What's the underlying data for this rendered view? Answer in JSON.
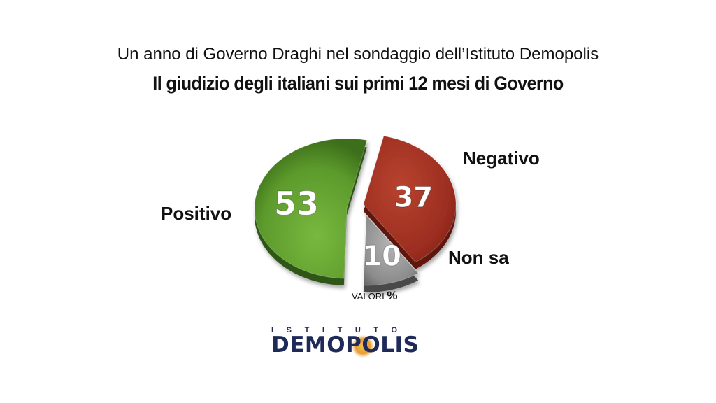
{
  "header": {
    "subtitle": "Un anno di Governo Draghi nel sondaggio dell’Istituto Demopolis",
    "title": "Il giudizio degli italiani sui primi 12 mesi di Governo"
  },
  "chart_data": {
    "type": "pie",
    "title": "Il giudizio degli italiani sui primi 12 mesi di Governo",
    "subtitle": "Un anno di Governo Draghi nel sondaggio dell’Istituto Demopolis",
    "categories": [
      "Negativo",
      "Non sa",
      "Positivo"
    ],
    "values": [
      37,
      10,
      53
    ],
    "value_labels": [
      "37",
      "10",
      "53"
    ],
    "colors": [
      "#9e2f22",
      "#8e8e8e",
      "#5c9a2c"
    ],
    "units_note": "VALORI",
    "units_symbol": "%",
    "exploded": true,
    "style": "3d"
  },
  "logo": {
    "top": "ISTITUTO",
    "main_left": "DEM",
    "main_mid": "O",
    "main_right": "POLIS"
  }
}
